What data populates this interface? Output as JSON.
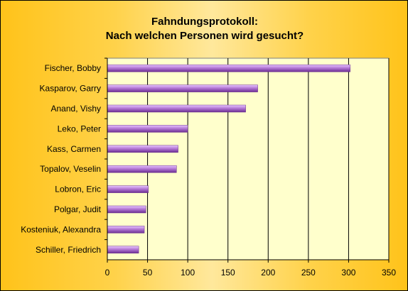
{
  "chart_data": {
    "type": "bar",
    "orientation": "horizontal",
    "title_lines": [
      "Fahndungsprotokoll:",
      "Nach welchen Personen wird gesucht?"
    ],
    "xlabel": "",
    "ylabel": "",
    "categories": [
      "Fischer, Bobby",
      "Kasparov, Garry",
      "Anand, Vishy",
      "Leko, Peter",
      "Kass, Carmen",
      "Topalov, Veselin",
      "Lobron, Eric",
      "Polgar, Judit",
      "Kosteniuk, Alexandra",
      "Schiller, Friedrich"
    ],
    "values": [
      302,
      187,
      172,
      100,
      88,
      86,
      51,
      48,
      46,
      39
    ],
    "xlim": [
      0,
      350
    ],
    "xticks": [
      0,
      50,
      100,
      150,
      200,
      250,
      300,
      350
    ],
    "grid": "vertical",
    "legend": "none",
    "colors": {
      "plot_background": "#ffffcc",
      "bar_light": "#e8c6ff",
      "bar_mid": "#b57ad6",
      "bar_dark": "#6b2d91",
      "gridline": "#000000",
      "frame_background": "#ffcc33"
    }
  }
}
